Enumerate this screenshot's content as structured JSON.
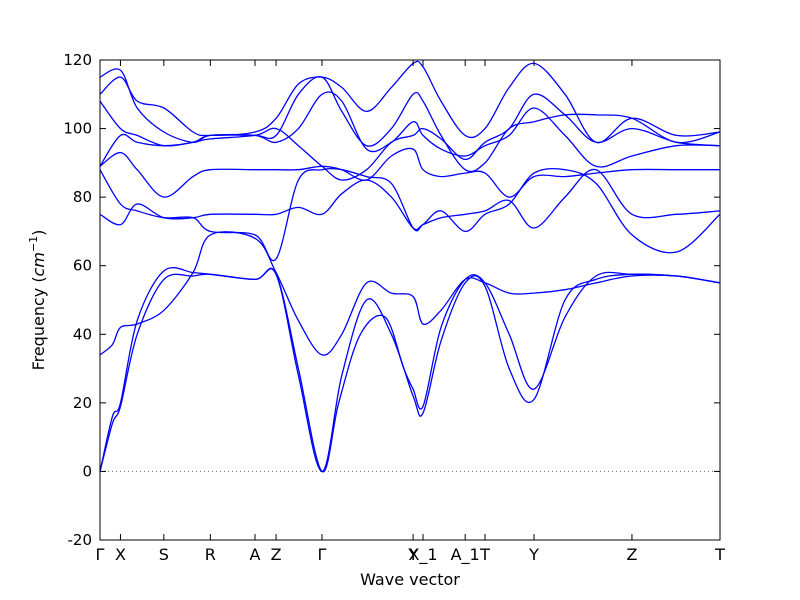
{
  "chart_data": {
    "type": "line",
    "xlabel": "Wave vector",
    "ylabel_prefix": "Frequency (",
    "ylabel_unit": "cm",
    "ylabel_exp": "−1",
    "ylabel_suffix": ")",
    "ylim": [
      -20,
      120
    ],
    "yticks": [
      -20,
      0,
      20,
      40,
      60,
      80,
      100,
      120
    ],
    "xlim": [
      0,
      1
    ],
    "grid": false,
    "series_color": "#0000ff",
    "zero_line_color": "#666666",
    "high_symmetry_points": [
      {
        "label": "Γ",
        "x": 0.0
      },
      {
        "label": "X",
        "x": 0.033
      },
      {
        "label": "S",
        "x": 0.103
      },
      {
        "label": "R",
        "x": 0.178
      },
      {
        "label": "A",
        "x": 0.25
      },
      {
        "label": "Z",
        "x": 0.284
      },
      {
        "label": "Γ",
        "x": 0.358
      },
      {
        "label": "Y",
        "x": 0.505
      },
      {
        "label": "X_1",
        "x": 0.521
      },
      {
        "label": "A_1",
        "x": 0.589
      },
      {
        "label": "T",
        "x": 0.621
      },
      {
        "label": "Y",
        "x": 0.7
      },
      {
        "label": "Z",
        "x": 0.858
      },
      {
        "label": "T",
        "x": 1.0
      }
    ],
    "series": [
      {
        "values": [
          [
            0,
            0
          ],
          [
            0.02,
            14
          ],
          [
            0.033,
            19
          ],
          [
            0.06,
            40
          ],
          [
            0.103,
            56
          ],
          [
            0.15,
            57
          ],
          [
            0.178,
            57.5
          ],
          [
            0.25,
            56
          ],
          [
            0.284,
            57.5
          ],
          [
            0.32,
            30
          ],
          [
            0.358,
            0
          ],
          [
            0.385,
            20
          ],
          [
            0.42,
            40
          ],
          [
            0.46,
            45
          ],
          [
            0.49,
            30
          ],
          [
            0.505,
            24
          ],
          [
            0.521,
            19
          ],
          [
            0.55,
            42
          ],
          [
            0.589,
            56
          ],
          [
            0.621,
            55
          ],
          [
            0.66,
            40
          ],
          [
            0.7,
            24
          ],
          [
            0.75,
            45
          ],
          [
            0.8,
            57
          ],
          [
            0.858,
            57.5
          ],
          [
            0.93,
            57
          ],
          [
            1.0,
            55
          ]
        ]
      },
      {
        "values": [
          [
            0,
            0
          ],
          [
            0.02,
            16
          ],
          [
            0.033,
            20
          ],
          [
            0.06,
            44
          ],
          [
            0.103,
            58.5
          ],
          [
            0.15,
            58
          ],
          [
            0.178,
            57.5
          ],
          [
            0.25,
            56
          ],
          [
            0.284,
            57.5
          ],
          [
            0.32,
            28
          ],
          [
            0.358,
            0
          ],
          [
            0.39,
            28
          ],
          [
            0.43,
            50
          ],
          [
            0.47,
            40
          ],
          [
            0.505,
            22
          ],
          [
            0.521,
            17
          ],
          [
            0.55,
            38
          ],
          [
            0.589,
            55
          ],
          [
            0.621,
            54
          ],
          [
            0.66,
            30
          ],
          [
            0.7,
            21
          ],
          [
            0.75,
            50
          ],
          [
            0.8,
            56
          ],
          [
            0.858,
            57.5
          ],
          [
            0.93,
            57
          ],
          [
            1.0,
            55
          ]
        ]
      },
      {
        "values": [
          [
            0,
            34
          ],
          [
            0.02,
            37
          ],
          [
            0.033,
            42
          ],
          [
            0.06,
            43
          ],
          [
            0.103,
            47
          ],
          [
            0.15,
            58
          ],
          [
            0.178,
            69
          ],
          [
            0.25,
            68
          ],
          [
            0.284,
            58
          ],
          [
            0.32,
            44
          ],
          [
            0.358,
            34
          ],
          [
            0.39,
            40
          ],
          [
            0.43,
            55
          ],
          [
            0.47,
            52
          ],
          [
            0.505,
            51
          ],
          [
            0.521,
            43
          ],
          [
            0.55,
            47
          ],
          [
            0.589,
            56
          ],
          [
            0.621,
            55
          ],
          [
            0.66,
            52
          ],
          [
            0.7,
            52
          ],
          [
            0.75,
            53
          ],
          [
            0.8,
            55
          ],
          [
            0.858,
            57
          ],
          [
            0.93,
            57
          ],
          [
            1.0,
            55
          ]
        ]
      },
      {
        "values": [
          [
            0,
            75
          ],
          [
            0.033,
            72
          ],
          [
            0.06,
            78
          ],
          [
            0.103,
            74
          ],
          [
            0.15,
            74
          ],
          [
            0.178,
            75
          ],
          [
            0.25,
            75
          ],
          [
            0.284,
            75
          ],
          [
            0.32,
            77
          ],
          [
            0.358,
            75
          ],
          [
            0.39,
            81
          ],
          [
            0.43,
            85
          ],
          [
            0.47,
            80
          ],
          [
            0.505,
            71
          ],
          [
            0.521,
            72
          ],
          [
            0.55,
            74
          ],
          [
            0.589,
            75
          ],
          [
            0.621,
            76
          ],
          [
            0.66,
            79
          ],
          [
            0.7,
            71
          ],
          [
            0.75,
            80
          ],
          [
            0.8,
            88
          ],
          [
            0.858,
            75
          ],
          [
            0.93,
            75
          ],
          [
            1.0,
            76
          ]
        ]
      },
      {
        "values": [
          [
            0,
            88
          ],
          [
            0.033,
            78
          ],
          [
            0.06,
            76
          ],
          [
            0.103,
            74
          ],
          [
            0.15,
            74
          ],
          [
            0.178,
            70
          ],
          [
            0.25,
            69
          ],
          [
            0.284,
            62
          ],
          [
            0.32,
            85
          ],
          [
            0.358,
            88
          ],
          [
            0.39,
            88
          ],
          [
            0.43,
            86
          ],
          [
            0.47,
            84
          ],
          [
            0.505,
            71
          ],
          [
            0.521,
            72
          ],
          [
            0.55,
            76
          ],
          [
            0.589,
            70
          ],
          [
            0.621,
            75
          ],
          [
            0.66,
            78
          ],
          [
            0.7,
            87
          ],
          [
            0.75,
            88
          ],
          [
            0.8,
            84
          ],
          [
            0.858,
            69
          ],
          [
            0.93,
            64
          ],
          [
            1.0,
            75
          ]
        ]
      },
      {
        "values": [
          [
            0,
            89
          ],
          [
            0.033,
            93
          ],
          [
            0.06,
            88
          ],
          [
            0.103,
            80
          ],
          [
            0.15,
            86
          ],
          [
            0.178,
            88
          ],
          [
            0.25,
            88
          ],
          [
            0.284,
            88
          ],
          [
            0.32,
            88
          ],
          [
            0.358,
            89
          ],
          [
            0.39,
            88
          ],
          [
            0.43,
            85
          ],
          [
            0.47,
            92
          ],
          [
            0.505,
            94
          ],
          [
            0.521,
            88
          ],
          [
            0.55,
            86
          ],
          [
            0.589,
            87
          ],
          [
            0.621,
            87
          ],
          [
            0.66,
            80
          ],
          [
            0.7,
            86
          ],
          [
            0.75,
            86
          ],
          [
            0.8,
            87
          ],
          [
            0.858,
            88
          ],
          [
            0.93,
            88
          ],
          [
            1.0,
            88
          ]
        ]
      },
      {
        "values": [
          [
            0,
            89
          ],
          [
            0.033,
            98
          ],
          [
            0.06,
            96
          ],
          [
            0.103,
            95
          ],
          [
            0.15,
            96
          ],
          [
            0.178,
            98
          ],
          [
            0.25,
            98
          ],
          [
            0.284,
            98
          ],
          [
            0.32,
            110
          ],
          [
            0.358,
            115
          ],
          [
            0.39,
            105
          ],
          [
            0.43,
            95
          ],
          [
            0.47,
            100
          ],
          [
            0.505,
            110
          ],
          [
            0.521,
            108
          ],
          [
            0.55,
            98
          ],
          [
            0.589,
            88
          ],
          [
            0.621,
            90
          ],
          [
            0.66,
            100
          ],
          [
            0.7,
            102
          ],
          [
            0.75,
            104
          ],
          [
            0.8,
            104
          ],
          [
            0.858,
            103
          ],
          [
            0.93,
            96
          ],
          [
            1.0,
            99
          ]
        ]
      },
      {
        "values": [
          [
            0,
            108
          ],
          [
            0.033,
            100
          ],
          [
            0.06,
            98
          ],
          [
            0.103,
            95
          ],
          [
            0.15,
            96
          ],
          [
            0.178,
            97
          ],
          [
            0.25,
            98
          ],
          [
            0.284,
            100
          ],
          [
            0.32,
            95
          ],
          [
            0.358,
            89
          ],
          [
            0.39,
            85
          ],
          [
            0.43,
            88
          ],
          [
            0.47,
            96
          ],
          [
            0.505,
            98
          ],
          [
            0.521,
            100
          ],
          [
            0.55,
            97
          ],
          [
            0.589,
            91
          ],
          [
            0.621,
            96
          ],
          [
            0.66,
            100
          ],
          [
            0.7,
            110
          ],
          [
            0.75,
            104
          ],
          [
            0.8,
            96
          ],
          [
            0.858,
            100
          ],
          [
            0.93,
            96
          ],
          [
            1.0,
            95
          ]
        ]
      },
      {
        "values": [
          [
            0,
            110
          ],
          [
            0.033,
            115
          ],
          [
            0.06,
            108
          ],
          [
            0.103,
            106
          ],
          [
            0.15,
            99
          ],
          [
            0.178,
            98
          ],
          [
            0.25,
            99
          ],
          [
            0.284,
            103
          ],
          [
            0.32,
            113
          ],
          [
            0.358,
            115
          ],
          [
            0.39,
            112
          ],
          [
            0.43,
            105
          ],
          [
            0.47,
            112
          ],
          [
            0.505,
            119
          ],
          [
            0.521,
            118
          ],
          [
            0.55,
            108
          ],
          [
            0.589,
            98
          ],
          [
            0.621,
            100
          ],
          [
            0.66,
            112
          ],
          [
            0.7,
            119
          ],
          [
            0.75,
            110
          ],
          [
            0.8,
            96
          ],
          [
            0.858,
            103
          ],
          [
            0.93,
            98
          ],
          [
            1.0,
            99
          ]
        ]
      },
      {
        "values": [
          [
            0,
            115
          ],
          [
            0.033,
            117
          ],
          [
            0.06,
            106
          ],
          [
            0.103,
            99
          ],
          [
            0.15,
            96
          ],
          [
            0.178,
            98
          ],
          [
            0.25,
            98
          ],
          [
            0.284,
            96
          ],
          [
            0.32,
            100
          ],
          [
            0.358,
            110
          ],
          [
            0.39,
            108
          ],
          [
            0.43,
            94
          ],
          [
            0.47,
            96
          ],
          [
            0.505,
            102
          ],
          [
            0.521,
            98
          ],
          [
            0.55,
            94
          ],
          [
            0.589,
            92
          ],
          [
            0.621,
            95
          ],
          [
            0.66,
            98
          ],
          [
            0.7,
            106
          ],
          [
            0.75,
            98
          ],
          [
            0.8,
            89
          ],
          [
            0.858,
            92
          ],
          [
            0.93,
            95
          ],
          [
            1.0,
            95
          ]
        ]
      }
    ]
  }
}
